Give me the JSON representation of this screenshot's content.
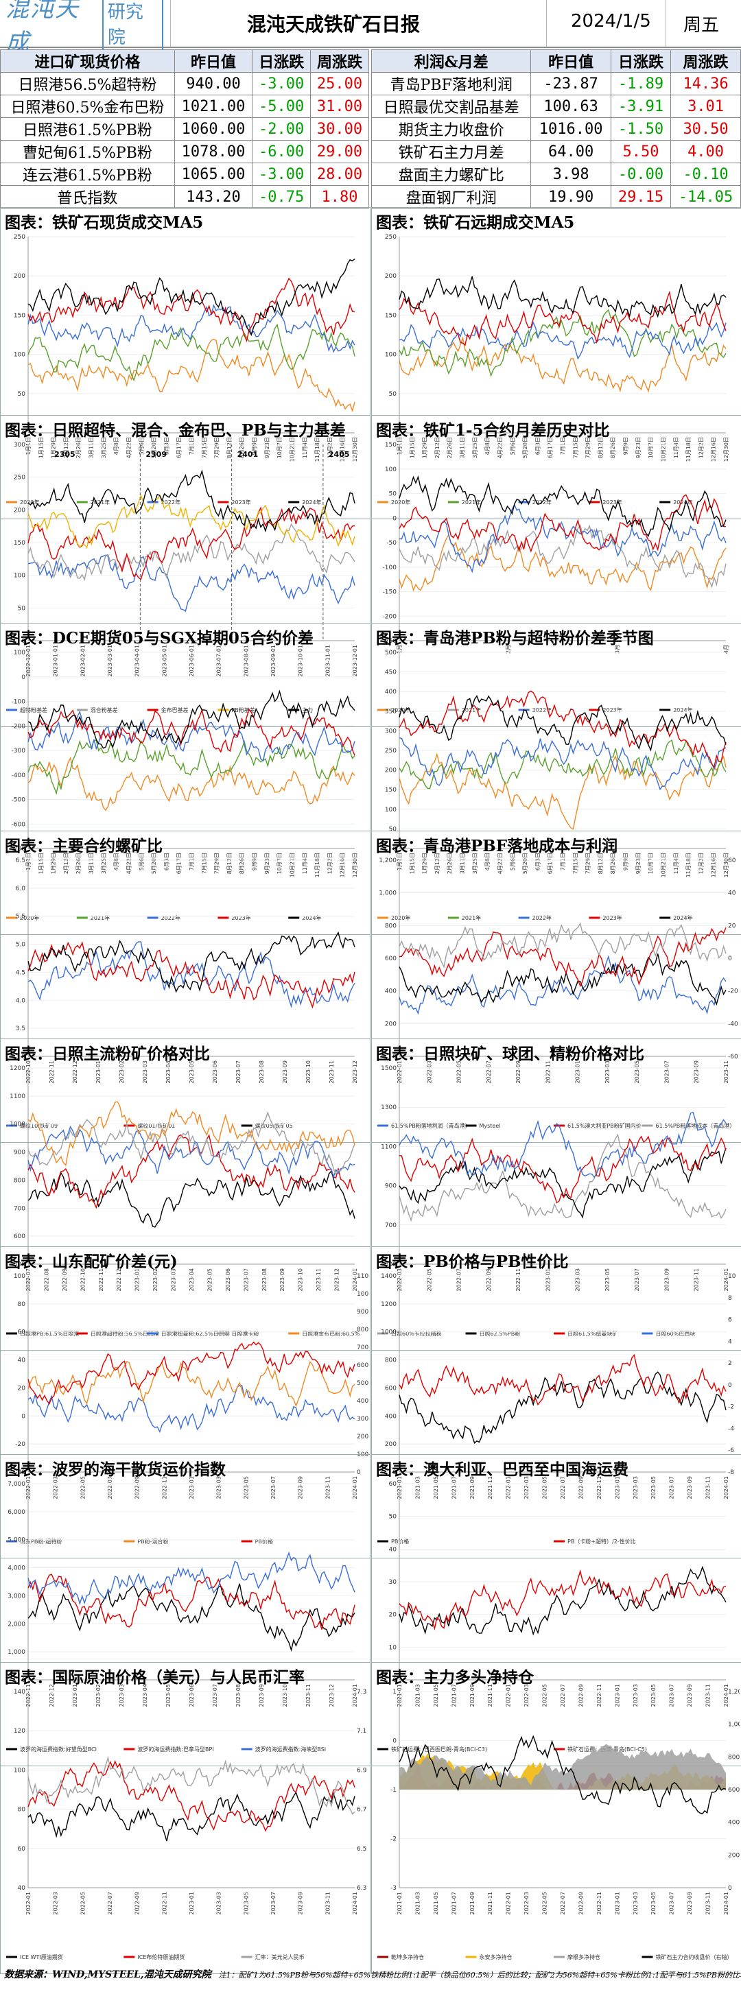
{
  "header": {
    "logo_text": "混沌天成",
    "logo_box": "研究院",
    "title": "混沌天成铁矿石日报",
    "date": "2024/1/5",
    "weekday": "周五"
  },
  "table_left": {
    "columns": [
      "进口矿现货价格",
      "昨日值",
      "日涨跌",
      "周涨跌"
    ],
    "rows": [
      {
        "name": "日照港56.5%超特粉",
        "v": "940.00",
        "d": "-3.00",
        "w": "25.00"
      },
      {
        "name": "日照港60.5%金布巴粉",
        "v": "1021.00",
        "d": "-5.00",
        "w": "31.00"
      },
      {
        "name": "日照港61.5%PB粉",
        "v": "1060.00",
        "d": "-2.00",
        "w": "30.00"
      },
      {
        "name": "曹妃甸61.5%PB粉",
        "v": "1078.00",
        "d": "-6.00",
        "w": "29.00"
      },
      {
        "name": "连云港61.5%PB粉",
        "v": "1065.00",
        "d": "-3.00",
        "w": "28.00"
      },
      {
        "name": "普氏指数",
        "v": "143.20",
        "d": "-0.75",
        "w": "1.80"
      }
    ]
  },
  "table_right": {
    "columns": [
      "利润&月差",
      "昨日值",
      "日涨跌",
      "周涨跌"
    ],
    "rows": [
      {
        "name": "青岛PBF落地利润",
        "v": "-23.87",
        "d": "-1.89",
        "w": "14.36"
      },
      {
        "name": "日照最优交割品基差",
        "v": "100.63",
        "d": "-3.91",
        "w": "3.01"
      },
      {
        "name": "期货主力收盘价",
        "v": "1016.00",
        "d": "-1.50",
        "w": "30.50"
      },
      {
        "name": "铁矿石主力月差",
        "v": "64.00",
        "d": "5.50",
        "w": "4.00"
      },
      {
        "name": "盘面主力螺矿比",
        "v": "3.98",
        "d": "-0.00",
        "w": "-0.10"
      },
      {
        "name": "盘面钢厂利润",
        "v": "19.90",
        "d": "29.15",
        "w": "-14.05"
      }
    ]
  },
  "colors": {
    "orange": "#f08a24",
    "green": "#5aa02c",
    "blue": "#3b6fd6",
    "red": "#e00000",
    "black": "#000000",
    "gray": "#a0a0a0",
    "yellow": "#f0b400",
    "darkred": "#a00000",
    "purple": "#b04dc8"
  },
  "chart_data": [
    {
      "type": "line",
      "title": "图表：铁矿石现货成交MA5",
      "ylim": [
        0,
        250
      ],
      "yticks": [
        "0",
        "50",
        "100",
        "150",
        "200",
        "250"
      ],
      "xticks": [
        "1月1日",
        "1月15日",
        "1月29日",
        "2月12日",
        "2月26日",
        "3月11日",
        "3月25日",
        "4月8日",
        "4月22日",
        "5月6日",
        "5月20日",
        "6月3日",
        "6月17日",
        "7月1日",
        "7月15日",
        "7月29日",
        "8月12日",
        "8月26日",
        "9月9日",
        "9月23日",
        "10月7日",
        "10月21日",
        "11月4日",
        "11月18日",
        "12月2日",
        "12月16日",
        "12月30日"
      ],
      "series": [
        {
          "name": "2020年",
          "color": "orange"
        },
        {
          "name": "2021年",
          "color": "green"
        },
        {
          "name": "2022年",
          "color": "blue"
        },
        {
          "name": "2023年",
          "color": "red"
        },
        {
          "name": "2024年",
          "color": "black"
        }
      ]
    },
    {
      "type": "line",
      "title": "图表：铁矿石远期成交MA5",
      "ylim": [
        0,
        250
      ],
      "yticks": [
        "0",
        "50",
        "100",
        "150",
        "200",
        "250"
      ],
      "xticks": [
        "1月1日",
        "1月15日",
        "1月29日",
        "2月12日",
        "2月26日",
        "3月11日",
        "3月25日",
        "4月8日",
        "4月22日",
        "5月6日",
        "5月20日",
        "6月3日",
        "6月17日",
        "7月1日",
        "7月15日",
        "7月29日",
        "8月12日",
        "8月26日",
        "9月9日",
        "9月23日",
        "10月7日",
        "10月21日",
        "11月4日",
        "11月18日",
        "12月2日",
        "12月16日",
        "12月30日"
      ],
      "series": [
        {
          "name": "2020年",
          "color": "orange"
        },
        {
          "name": "2021年",
          "color": "green"
        },
        {
          "name": "2022年",
          "color": "blue"
        },
        {
          "name": "2023年",
          "color": "red"
        },
        {
          "name": "2024年",
          "color": "black"
        }
      ]
    },
    {
      "type": "line",
      "title": "图表：日照超特、混合、金布巴、PB与主力基差",
      "ylim": [
        0,
        300
      ],
      "yticks": [
        "0",
        "50",
        "100",
        "150",
        "200",
        "250",
        "300"
      ],
      "annotations": [
        "2305",
        "2309",
        "2401",
        "2405"
      ],
      "xticks": [
        "2022-12-01",
        "2023-01-01",
        "2023-02-01",
        "2023-03-01",
        "2023-04-01",
        "2023-05-01",
        "2023-06-01",
        "2023-07-01",
        "2023-08-01",
        "2023-09-01",
        "2023-10-01",
        "2023-11-01",
        "2023-12-01"
      ],
      "series": [
        {
          "name": "超特粉基差",
          "color": "blue"
        },
        {
          "name": "混合粉基差",
          "color": "gray"
        },
        {
          "name": "金布巴基差",
          "color": "red"
        },
        {
          "name": "PB粉基差",
          "color": "yellow"
        },
        {
          "name": "主力",
          "color": "black"
        }
      ]
    },
    {
      "type": "line",
      "title": "图表：铁矿1-5合约月差历史对比",
      "ylim": [
        -250,
        150
      ],
      "yticks": [
        "-250",
        "-200",
        "-150",
        "-100",
        "-50",
        "0",
        "50",
        "100",
        "150"
      ],
      "xticks": [
        "1月",
        "",
        "",
        "",
        "",
        "",
        "2月",
        "",
        "",
        "",
        "",
        "",
        "3月",
        "",
        "",
        "",
        "",
        "",
        "4月"
      ],
      "series": [
        {
          "name": "2020年",
          "color": "orange"
        },
        {
          "name": "2021年",
          "color": "gray"
        },
        {
          "name": "2022年",
          "color": "blue"
        },
        {
          "name": "2023年",
          "color": "red"
        },
        {
          "name": "2024年",
          "color": "black"
        }
      ]
    },
    {
      "type": "line",
      "title": "图表：DCE期货05与SGX掉期05合约价差",
      "ylim": [
        -700,
        100
      ],
      "yticks": [
        "-700",
        "-600",
        "-500",
        "-400",
        "-300",
        "-200",
        "-100",
        "0",
        "100"
      ],
      "xticks": [
        "1月1日",
        "1月15日",
        "1月29日",
        "2月12日",
        "2月26日",
        "3月11日",
        "3月25日",
        "4月8日",
        "4月22日",
        "5月6日",
        "5月20日",
        "6月3日",
        "6月17日",
        "7月1日",
        "7月15日",
        "7月29日",
        "8月12日",
        "8月26日",
        "9月9日",
        "9月23日",
        "10月7日",
        "10月21日",
        "11月4日",
        "11月18日",
        "12月2日",
        "12月16日",
        "12月30日"
      ],
      "series": [
        {
          "name": "2020年",
          "color": "orange"
        },
        {
          "name": "2021年",
          "color": "green"
        },
        {
          "name": "2022年",
          "color": "blue"
        },
        {
          "name": "2023年",
          "color": "red"
        },
        {
          "name": "2024年",
          "color": "black"
        }
      ]
    },
    {
      "type": "line",
      "title": "图表：青岛港PB粉与超特粉价差季节图",
      "ylim": [
        0,
        500
      ],
      "yticks": [
        "0",
        "50",
        "100",
        "150",
        "200",
        "250",
        "300",
        "350",
        "400",
        "450",
        "500"
      ],
      "xticks": [
        "1月1日",
        "1月15日",
        "1月29日",
        "2月12日",
        "2月26日",
        "3月11日",
        "3月25日",
        "4月8日",
        "4月22日",
        "5月6日",
        "5月20日",
        "6月3日",
        "6月17日",
        "7月1日",
        "7月15日",
        "7月29日",
        "8月12日",
        "8月26日",
        "9月9日",
        "9月23日",
        "10月7日",
        "10月21日",
        "11月4日",
        "11月18日",
        "12月2日",
        "12月16日",
        "12月30日"
      ],
      "series": [
        {
          "name": "2020年",
          "color": "orange"
        },
        {
          "name": "2021年",
          "color": "green"
        },
        {
          "name": "2022年",
          "color": "blue"
        },
        {
          "name": "2023年",
          "color": "red"
        },
        {
          "name": "2024年",
          "color": "black"
        }
      ]
    },
    {
      "type": "line",
      "title": "图表：主要合约螺矿比",
      "ylim": [
        3.0,
        6.5
      ],
      "yticks": [
        "3.0",
        "3.5",
        "4.0",
        "4.5",
        "5.0",
        "5.5",
        "6.0",
        "6.5"
      ],
      "xticks": [
        "2022-10",
        "2022-11",
        "2022-12",
        "2023-01",
        "2023-02",
        "2023-03",
        "2023-04",
        "2023-05",
        "2023-06",
        "2023-07",
        "2023-08",
        "2023-09",
        "2023-10",
        "2023-11",
        "2023-12"
      ],
      "series": [
        {
          "name": "螺纹10/铁矿09",
          "color": "blue"
        },
        {
          "name": "螺纹01/铁矿01",
          "color": "red"
        },
        {
          "name": "螺纹05/铁矿05",
          "color": "black"
        }
      ]
    },
    {
      "type": "line",
      "title": "图表：青岛港PBF落地成本与利润",
      "ylim": [
        0,
        1200
      ],
      "yticks": [
        "0",
        "200",
        "400",
        "600",
        "800",
        "1,000",
        "1,200"
      ],
      "y2ticks": [
        "-60",
        "-40",
        "-20",
        "0",
        "20",
        "40",
        "60"
      ],
      "xticks": [
        "2022-01",
        "2022-03",
        "2022-05",
        "2022-07",
        "2022-09",
        "2022-11",
        "2023-01",
        "2023-03",
        "2023-05",
        "2023-07",
        "2023-09",
        "2023-11"
      ],
      "series": [
        {
          "name": "61.5%PB粉落地利润（青岛港）",
          "color": "blue"
        },
        {
          "name": "Mysteel",
          "color": "black"
        },
        {
          "name": "61.5%澳大利亚PB粉矿国内价",
          "color": "red"
        },
        {
          "name": "61.5%PB粉落地成本（青岛港）",
          "color": "gray"
        }
      ]
    },
    {
      "type": "line",
      "title": "图表：日照主流粉矿价格对比",
      "ylim": [
        500,
        1200
      ],
      "yticks": [
        "500",
        "600",
        "700",
        "800",
        "900",
        "1000",
        "1100",
        "1200"
      ],
      "xticks": [
        "2022-07",
        "2022-08",
        "2022-09",
        "2022-10",
        "2022-11",
        "2022-12",
        "2023-01",
        "2023-02",
        "2023-03",
        "2023-04",
        "2023-05",
        "2023-06",
        "2023-07",
        "2023-08",
        "2023-09",
        "2023-10",
        "2023-11",
        "2023-12",
        "2024-01"
      ],
      "series": [
        {
          "name": "日照港PB:61.5%日照港",
          "color": "black"
        },
        {
          "name": "日照港超特粉:56.5%日照港",
          "color": "red"
        },
        {
          "name": "日照港纽曼粉:62.5%日照港",
          "color": "blue"
        },
        {
          "name": "日照港卡粉",
          "color": "gray"
        },
        {
          "name": "日照港金布巴粉:60.5%",
          "color": "orange"
        }
      ]
    },
    {
      "type": "line",
      "title": "图表：日照块矿、球团、精粉价格对比",
      "ylim": [
        500,
        1500
      ],
      "yticks": [
        "500",
        "700",
        "900",
        "1100",
        "1300",
        "1500"
      ],
      "xticks": [
        "2022-03",
        "2022-05",
        "2022-07",
        "2022-09",
        "2022-11",
        "2023-01",
        "2023-03",
        "2023-05",
        "2023-07",
        "2023-09",
        "2023-11",
        "2024-01"
      ],
      "series": [
        {
          "name": "日照60%卡拉拉精粉",
          "color": "gray"
        },
        {
          "name": "日照62.5%PB粉",
          "color": "black"
        },
        {
          "name": "日照61.5%纽曼块矿",
          "color": "red"
        },
        {
          "name": "日照60%巴西块",
          "color": "blue"
        }
      ]
    },
    {
      "type": "line",
      "title": "图表：山东配矿价差(元)",
      "ylim": [
        -40,
        100
      ],
      "yticks": [
        "-40",
        "-20",
        "0",
        "20",
        "40",
        "60",
        "80",
        "100"
      ],
      "y2ticks": [
        "0",
        "100",
        "200",
        "300",
        "400",
        "500",
        "600",
        "700",
        "800",
        "900",
        "1000",
        "1100"
      ],
      "xticks": [
        "2022-01",
        "2022-03",
        "2022-05",
        "2022-07",
        "2022-09",
        "2022-11",
        "2023-01",
        "2023-03",
        "2023-05",
        "2023-07",
        "2023-09",
        "2023-11",
        "2024-01"
      ],
      "series": [
        {
          "name": "山东PB粉-超特粉",
          "color": "blue"
        },
        {
          "name": "PB粉-混合粉",
          "color": "orange"
        },
        {
          "name": "PB价格",
          "color": "red"
        }
      ]
    },
    {
      "type": "line",
      "title": "图表：PB价格与PB性价比",
      "ylim": [
        0,
        1400
      ],
      "yticks": [
        "0",
        "200",
        "400",
        "600",
        "800",
        "1000",
        "1200",
        "1400"
      ],
      "y2ticks": [
        "-8",
        "-6",
        "-4",
        "-2",
        "0",
        "2",
        "4",
        "6",
        "8",
        "10"
      ],
      "xticks": [
        "2021-01",
        "2021-03",
        "2021-05",
        "2021-07",
        "2021-09",
        "2021-11",
        "2022-01",
        "2022-03",
        "2022-05",
        "2022-07",
        "2022-09",
        "2022-11",
        "2023-01",
        "2023-03",
        "2023-05",
        "2023-07",
        "2023-09",
        "2023-11",
        "2024-01"
      ],
      "series": [
        {
          "name": "PB价格",
          "color": "black"
        },
        {
          "name": "PB（卡粉+超特）/2-性价比",
          "color": "red"
        }
      ]
    },
    {
      "type": "line",
      "title": "图表：波罗的海干散货运价指数",
      "ylim": [
        0,
        7000
      ],
      "yticks": [
        "0",
        "1,000",
        "2,000",
        "3,000",
        "4,000",
        "5,000",
        "6,000",
        "7,000"
      ],
      "xticks": [
        "2022-11",
        "2022-12",
        "2023-01",
        "2023-02",
        "2023-03",
        "2023-04",
        "2023-05",
        "2023-06",
        "2023-07",
        "2023-08",
        "2023-09",
        "2023-10",
        "2023-11",
        "2023-12",
        "2024-01"
      ],
      "series": [
        {
          "name": "波罗的海运费指数:好望角型BCI",
          "color": "black"
        },
        {
          "name": "波罗的海运费指数:巴拿马型BPI",
          "color": "red"
        },
        {
          "name": "波罗的海运费指数:海峡型BSI",
          "color": "blue"
        }
      ]
    },
    {
      "type": "line",
      "title": "图表：澳大利亚、巴西至中国海运费",
      "ylim": [
        0,
        60
      ],
      "yticks": [
        "0",
        "10",
        "20",
        "30",
        "40",
        "50",
        "60"
      ],
      "xticks": [
        "2021-01",
        "2021-03",
        "2021-05",
        "2021-07",
        "2021-09",
        "2021-11",
        "2022-01",
        "2022-03",
        "2022-05",
        "2022-07",
        "2022-09",
        "2022-11",
        "2023-01",
        "2023-03",
        "2023-05",
        "2023-07",
        "2023-09",
        "2023-11",
        "2024-01"
      ],
      "series": [
        {
          "name": "铁矿石运费：巴西图巴朗-青岛(BCI-C3)",
          "color": "black"
        },
        {
          "name": "铁矿石运费：西澳-青岛(BCI-C5)",
          "color": "red"
        }
      ]
    },
    {
      "type": "line",
      "title": "图表：国际原油价格（美元）与人民币汇率",
      "ylim": [
        40,
        140
      ],
      "yticks": [
        "40",
        "60",
        "80",
        "100",
        "120",
        "140"
      ],
      "y2ticks": [
        "6.3",
        "6.5",
        "6.7",
        "6.9",
        "7.1",
        "7.3"
      ],
      "xticks": [
        "2022-01",
        "2022-03",
        "2022-05",
        "2022-07",
        "2022-09",
        "2022-11",
        "2023-01",
        "2023-03",
        "2023-05",
        "2023-07",
        "2023-09",
        "2023-11",
        "2024-01"
      ],
      "series": [
        {
          "name": "ICE WTI原油期货",
          "color": "black"
        },
        {
          "name": "ICE布伦特原油期货",
          "color": "red"
        },
        {
          "name": "汇率：美元兑人民币",
          "color": "gray"
        }
      ]
    },
    {
      "type": "area",
      "title": "图表：主力多头净持仓",
      "ylim": [
        -3,
        1
      ],
      "yticks": [
        "-3",
        "-2",
        "-1",
        "0",
        "1"
      ],
      "y2ticks": [
        "0",
        "200",
        "400",
        "600",
        "800",
        "1,000",
        "1,200"
      ],
      "xticks": [
        "2021-01",
        "2021-03",
        "2021-05",
        "2021-07",
        "2021-09",
        "2021-11",
        "2022-01",
        "2022-03",
        "2022-05",
        "2022-07",
        "2022-09",
        "2022-11",
        "2023-01",
        "2023-03",
        "2023-05",
        "2023-07",
        "2023-09",
        "2023-11",
        "2024-01"
      ],
      "series": [
        {
          "name": "乾坤多净持仓",
          "color": "darkred"
        },
        {
          "name": "永安多净持仓",
          "color": "yellow"
        },
        {
          "name": "摩根多净持仓",
          "color": "gray"
        },
        {
          "name": "铁矿石主力合约收盘价（右轴）",
          "color": "black"
        }
      ]
    }
  ],
  "footer": {
    "source": "数据来源：WIND,MYSTEEL,混沌天成研究院",
    "note": "注1：配矿1为61.5%PB粉与56%超特+65%铁精粉比例1:1配平（铁品位60.5%）后的比较；配矿2为56%超特+65%卡粉比例1:1配平与61.5%PB粉的比较。"
  }
}
